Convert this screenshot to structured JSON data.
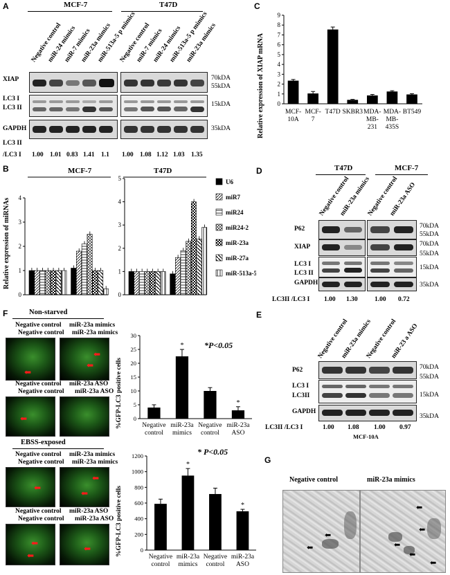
{
  "panel_letters": {
    "a": "A",
    "b": "B",
    "c": "C",
    "d": "D",
    "e": "E",
    "f": "F",
    "g": "G"
  },
  "panelA": {
    "groups": [
      "MCF-7",
      "T47D"
    ],
    "lanes": [
      "Negative control",
      "miR-24 mimics",
      "miR-7 mimics",
      "miR-23a mimics",
      "miR-513a-5 p mimics",
      "Negative control",
      "miR-7 mimics",
      "miR-24 mimics",
      "miR-513a-5 p mimics",
      "miR-23a mimics"
    ],
    "rows": [
      "XIAP",
      "LC3 I",
      "LC3 II",
      "GAPDH"
    ],
    "markers": [
      "70kDA",
      "55kDA",
      "15kDA",
      "35kDA"
    ],
    "ratio_label": "LC3 II",
    "ratio_label2": "/LC3 I",
    "ratios": [
      "1.00",
      "1.01",
      "0.83",
      "1.41",
      "1.1",
      "1.00",
      "1.08",
      "1.12",
      "1.03",
      "1.35"
    ]
  },
  "panelB": {
    "ylabel": "Relative expression of miRNAs",
    "legend": [
      "U6",
      "miR7",
      "miR24",
      "miR24-2",
      "miR-23a",
      "miR-27a",
      "miR-513a-5P"
    ]
  },
  "panelC": {
    "ylabel": "Relative expression of XIAP mRNA"
  },
  "panelD": {
    "groups": [
      "T47D",
      "MCF-7"
    ],
    "lanes": [
      "Negative control",
      "miR-23a mimics",
      "Negative control",
      "miR-23a ASO"
    ],
    "rows": [
      "P62",
      "XIAP",
      "LC3 I",
      "LC3 II",
      "GAPDH"
    ],
    "markers": [
      "70kDA",
      "55kDA",
      "70kDA",
      "55kDA",
      "15kDA",
      "35kDA"
    ],
    "ratio_label": "LC3II /LC3 I",
    "ratios": [
      "1.00",
      "1.30",
      "1.00",
      "0.72"
    ]
  },
  "panelE": {
    "lanes": [
      "Negative control",
      "miR-23a mimics",
      "Negative control",
      "miR-23 a ASO"
    ],
    "rows": [
      "P62",
      "LC3 I",
      "LC3II",
      "GAPDH"
    ],
    "markers": [
      "70kDA",
      "55kDA",
      "15kDA",
      "35kDA"
    ],
    "ratio_label": "LC3II /LC3 I",
    "ratios": [
      "1.00",
      "1.08",
      "1.00",
      "0.97"
    ],
    "cell_line": "MCF-10A"
  },
  "panelF": {
    "top_title": "Non-starved",
    "bottom_title": "EBSS-exposed",
    "img_labels": [
      "Negative control",
      "miR-23a mimics",
      "Negative control",
      "miR-23a ASO"
    ],
    "ylabel": "%GFP-LC3 positive cells",
    "pvalue": "*P<0.05",
    "pvalue2": "* P<0.05"
  },
  "panelG": {
    "labels": [
      "Negative control",
      "miR-23a mimics"
    ]
  },
  "chart_data": [
    {
      "type": "bar",
      "title": "MCF-7",
      "ylabel": "Relative expression of miRNAs",
      "ylim": [
        0,
        4
      ],
      "yticks": [
        "0",
        "1",
        "2",
        "3",
        "4"
      ],
      "categories": [
        "U6",
        "miR7",
        "miR24",
        "miR24-2",
        "miR-23a",
        "miR-27a",
        "miR-513a-5P"
      ],
      "series": [
        {
          "name": "Negative control",
          "values": [
            1.0,
            1.0,
            1.0,
            1.0,
            1.0,
            1.0,
            1.0
          ]
        },
        {
          "name": "miR-23a",
          "values": [
            1.1,
            1.8,
            2.1,
            2.5,
            1.0,
            1.0,
            0.25
          ]
        }
      ]
    },
    {
      "type": "bar",
      "title": "T47D",
      "ylim": [
        0,
        5
      ],
      "yticks": [
        "0",
        "1",
        "2",
        "3",
        "4",
        "5"
      ],
      "categories": [
        "U6",
        "miR7",
        "miR24",
        "miR24-2",
        "miR-23a",
        "miR-27a",
        "miR-513a-5P"
      ],
      "series": [
        {
          "name": "Negative control",
          "values": [
            1.0,
            1.0,
            1.0,
            1.0,
            1.0,
            1.0,
            1.0
          ]
        },
        {
          "name": "miR-23a",
          "values": [
            0.9,
            1.6,
            1.9,
            2.3,
            4.0,
            2.4,
            2.9
          ]
        }
      ]
    },
    {
      "type": "bar",
      "ylabel": "Relative expression of XIAP mRNA",
      "ylim": [
        0,
        9
      ],
      "yticks": [
        "0",
        "1",
        "2",
        "3",
        "4",
        "5",
        "6",
        "7",
        "8",
        "9"
      ],
      "categories": [
        "MCF-10A",
        "MCF-7",
        "T47D",
        "SKBR3",
        "MDA-MB-231",
        "MDA-MB-435S",
        "BT549"
      ],
      "tick_labels": [
        [
          "MCF-",
          "10A"
        ],
        [
          "MCF-",
          "7"
        ],
        [
          "T47D"
        ],
        [
          "SKBR3"
        ],
        [
          "MDA-",
          "MB-",
          "231"
        ],
        [
          "MDA-",
          "MB-",
          "435S"
        ],
        [
          "BT549"
        ]
      ],
      "values": [
        2.35,
        1.05,
        7.55,
        0.4,
        0.85,
        1.25,
        0.95
      ],
      "errors": [
        0.12,
        0.2,
        0.25,
        0.05,
        0.1,
        0.08,
        0.08
      ]
    },
    {
      "type": "bar",
      "title": "Non-starved",
      "ylabel": "%GFP-LC3 positive cells",
      "ylim": [
        0,
        30
      ],
      "yticks": [
        "0",
        "5",
        "10",
        "15",
        "20",
        "25",
        "30"
      ],
      "categories": [
        "Negative control",
        "miR-23a mimics",
        "Negative control",
        "miR-23a ASO"
      ],
      "values": [
        4.0,
        22.5,
        10.0,
        3.0
      ],
      "errors": [
        1.0,
        2.5,
        1.2,
        1.3
      ],
      "significant": [
        false,
        true,
        false,
        true
      ]
    },
    {
      "type": "bar",
      "title": "EBSS-exposed",
      "ylabel": "%GFP-LC3 positive cells",
      "ylim": [
        0,
        1200
      ],
      "yticks": [
        "0",
        "200",
        "400",
        "600",
        "800",
        "1000",
        "1200"
      ],
      "categories": [
        "Negative control",
        "miR-23a mimics",
        "Negative control",
        "miR-23a ASO"
      ],
      "values": [
        590,
        950,
        715,
        495
      ],
      "errors": [
        60,
        90,
        75,
        25
      ],
      "significant": [
        false,
        true,
        false,
        true
      ]
    }
  ]
}
